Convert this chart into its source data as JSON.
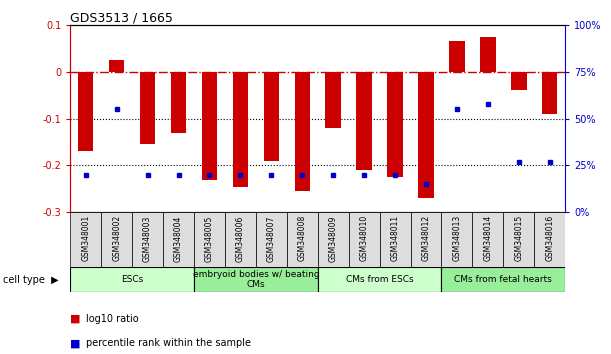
{
  "title": "GDS3513 / 1665",
  "samples": [
    "GSM348001",
    "GSM348002",
    "GSM348003",
    "GSM348004",
    "GSM348005",
    "GSM348006",
    "GSM348007",
    "GSM348008",
    "GSM348009",
    "GSM348010",
    "GSM348011",
    "GSM348012",
    "GSM348013",
    "GSM348014",
    "GSM348015",
    "GSM348016"
  ],
  "log10_ratio": [
    -0.17,
    0.025,
    -0.155,
    -0.13,
    -0.23,
    -0.245,
    -0.19,
    -0.255,
    -0.12,
    -0.21,
    -0.225,
    -0.27,
    0.065,
    0.075,
    -0.04,
    -0.09
  ],
  "percentile_rank": [
    20,
    55,
    20,
    20,
    20,
    20,
    20,
    20,
    20,
    20,
    20,
    15,
    55,
    58,
    27,
    27
  ],
  "bar_color": "#cc0000",
  "dot_color": "#0000cc",
  "cell_groups": [
    {
      "label": "ESCs",
      "start": 0,
      "end": 3,
      "color": "#ccffcc"
    },
    {
      "label": "embryoid bodies w/ beating\nCMs",
      "start": 4,
      "end": 7,
      "color": "#99ee99"
    },
    {
      "label": "CMs from ESCs",
      "start": 8,
      "end": 11,
      "color": "#ccffcc"
    },
    {
      "label": "CMs from fetal hearts",
      "start": 12,
      "end": 15,
      "color": "#99ee99"
    }
  ],
  "background_color": "#ffffff"
}
